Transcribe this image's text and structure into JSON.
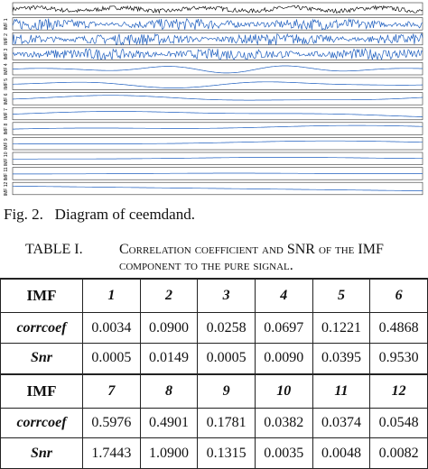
{
  "figure": {
    "panel_labels": [
      "IMF 1",
      "IMF 2",
      "IMF 3",
      "IMF 4",
      "IMF 5",
      "IMF 6",
      "IMF 7",
      "IMF 8",
      "IMF 9",
      "IMF 10",
      "IMF 11",
      "IMF 12"
    ],
    "caption": "Fig. 2.   Diagram of ceemdand."
  },
  "table": {
    "label": "TABLE I.",
    "caption": "Correlation coefficient and SNR of the IMF component to the pure signal.",
    "rows": [
      [
        "IMF",
        "1",
        "2",
        "3",
        "4",
        "5",
        "6"
      ],
      [
        "corrcoef",
        "0.0034",
        "0.0900",
        "0.0258",
        "0.0697",
        "0.1221",
        "0.4868"
      ],
      [
        "Snr",
        "0.0005",
        "0.0149",
        "0.0005",
        "0.0090",
        "0.0395",
        "0.9530"
      ],
      [
        "IMF",
        "7",
        "8",
        "9",
        "10",
        "11",
        "12"
      ],
      [
        "corrcoef",
        "0.5976",
        "0.4901",
        "0.1781",
        "0.0382",
        "0.0374",
        "0.0548"
      ],
      [
        "Snr",
        "1.7443",
        "1.0900",
        "0.1315",
        "0.0035",
        "0.0048",
        "0.0082"
      ]
    ]
  }
}
